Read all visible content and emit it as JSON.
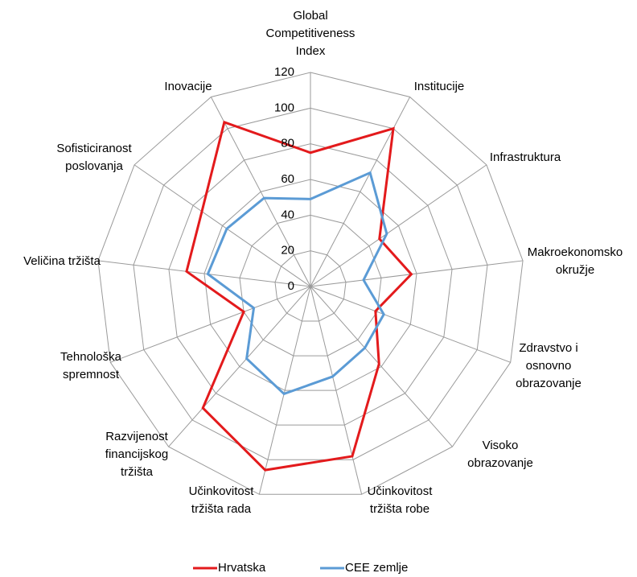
{
  "chart_data": {
    "type": "radar",
    "categories": [
      "Global\nCompetitiveness\nIndex",
      "Institucije",
      "Infrastruktura",
      "Makroekonomsko\nokružje",
      "Zdravstvo i\nosnovno\nobrazovanje",
      "Visoko\nobrazovanje",
      "Učinkovitost\ntržišta robe",
      "Učinkovitost\ntržišta rada",
      "Razvijenost\nfinancijskog\ntržišta",
      "Tehnološka\nspremnost",
      "Veličina tržišta",
      "Sofisticiranost\nposlovanja",
      "Inovacije"
    ],
    "series": [
      {
        "name": "Hrvatska",
        "color": "#e31a1c",
        "values": [
          75,
          100,
          47,
          57,
          39,
          58,
          98,
          106,
          91,
          40,
          70,
          74,
          104
        ]
      },
      {
        "name": "CEE zemlje",
        "color": "#5b9bd5",
        "values": [
          49,
          72,
          52,
          30,
          44,
          46,
          52,
          62,
          54,
          34,
          58,
          57,
          56
        ]
      }
    ],
    "ylim": [
      0,
      120
    ],
    "yticks": [
      0,
      20,
      40,
      60,
      80,
      100,
      120
    ],
    "grid": true,
    "legend": "bottom"
  }
}
